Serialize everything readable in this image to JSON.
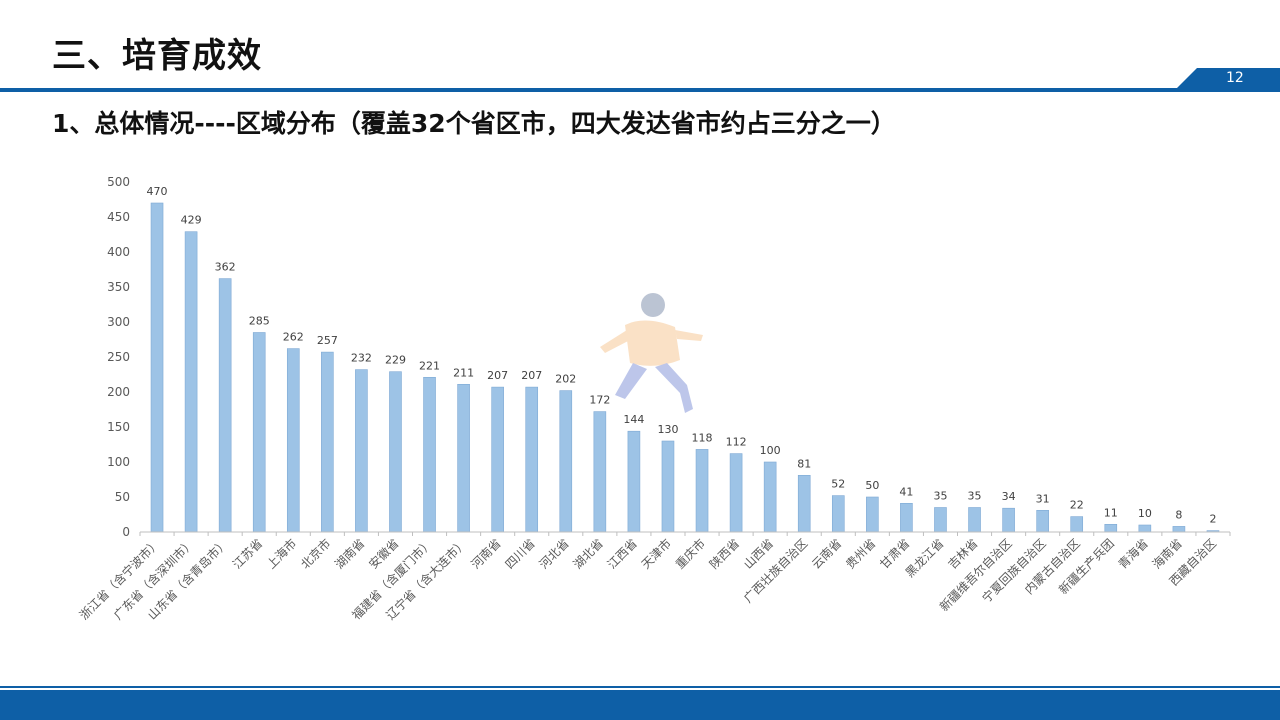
{
  "header": {
    "title": "三、培育成效",
    "page_number": "12"
  },
  "subtitle": "1、总体情况----区域分布（覆盖32个省区市，四大发达省市约占三分之一）",
  "colors": {
    "brand": "#0e5fa6",
    "bar": "#9dc3e6",
    "axis_text": "#595959"
  },
  "chart_data": {
    "type": "bar",
    "title": "",
    "xlabel": "",
    "ylabel": "",
    "ylim": [
      0,
      500
    ],
    "yticks": [
      0,
      50,
      100,
      150,
      200,
      250,
      300,
      350,
      400,
      450,
      500
    ],
    "grid": false,
    "categories": [
      "浙江省（含宁波市）",
      "广东省（含深圳市）",
      "山东省（含青岛市）",
      "江苏省",
      "上海市",
      "北京市",
      "湖南省",
      "安徽省",
      "福建省（含厦门市）",
      "辽宁省（含大连市）",
      "河南省",
      "四川省",
      "河北省",
      "湖北省",
      "江西省",
      "天津市",
      "重庆市",
      "陕西省",
      "山西省",
      "广西壮族自治区",
      "云南省",
      "贵州省",
      "甘肃省",
      "黑龙江省",
      "吉林省",
      "新疆维吾尔自治区",
      "宁夏回族自治区",
      "内蒙古自治区",
      "新疆生产兵团",
      "青海省",
      "海南省",
      "西藏自治区"
    ],
    "values": [
      470,
      429,
      362,
      285,
      262,
      257,
      232,
      229,
      221,
      211,
      207,
      207,
      202,
      172,
      144,
      130,
      118,
      112,
      100,
      81,
      52,
      50,
      41,
      35,
      35,
      34,
      31,
      22,
      11,
      10,
      8,
      2
    ]
  }
}
